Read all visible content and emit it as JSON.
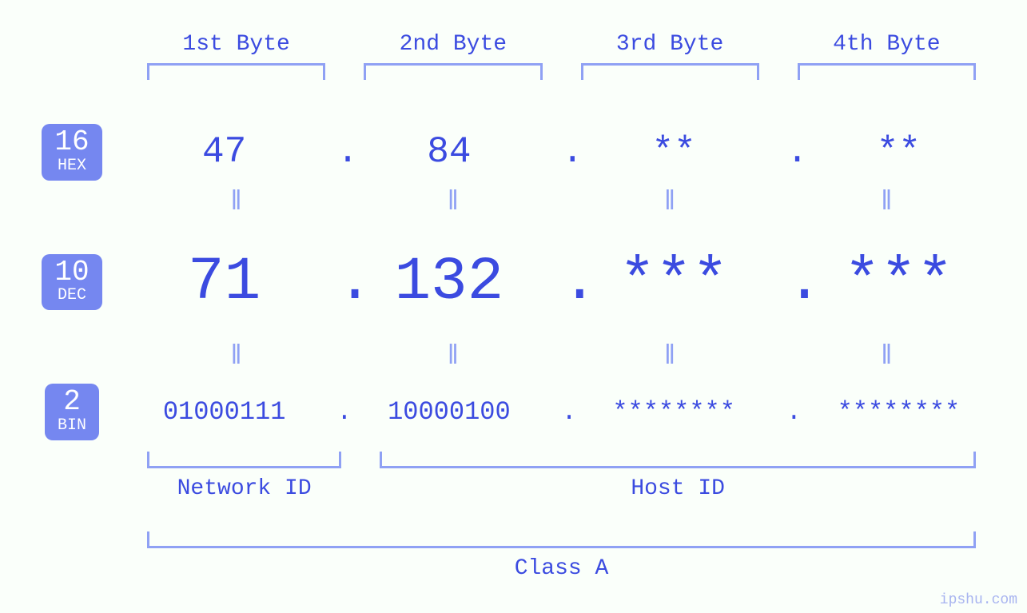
{
  "colors": {
    "background": "#fafffa",
    "text_main": "#3b4be0",
    "text_light": "#8fa1f4",
    "badge_bg": "#7587f0",
    "badge_text": "#ffffff",
    "bracket": "#8fa1f4"
  },
  "byte_headers": [
    "1st Byte",
    "2nd Byte",
    "3rd Byte",
    "4th Byte"
  ],
  "separator": ".",
  "equals_glyph": "ǁ",
  "bases": {
    "hex": {
      "num": "16",
      "label": "HEX",
      "values": [
        "47",
        "84",
        "**",
        "**"
      ],
      "fontsize": 46
    },
    "dec": {
      "num": "10",
      "label": "DEC",
      "values": [
        "71",
        "132",
        "***",
        "***"
      ],
      "fontsize": 76
    },
    "bin": {
      "num": "2",
      "label": "BIN",
      "values": [
        "01000111",
        "10000100",
        "********",
        "********"
      ],
      "fontsize": 32
    }
  },
  "groups": {
    "network": {
      "label": "Network ID",
      "span_bytes": 1
    },
    "host": {
      "label": "Host ID",
      "span_bytes": 3
    },
    "class": {
      "label": "Class A"
    }
  },
  "watermark": "ipshu.com"
}
